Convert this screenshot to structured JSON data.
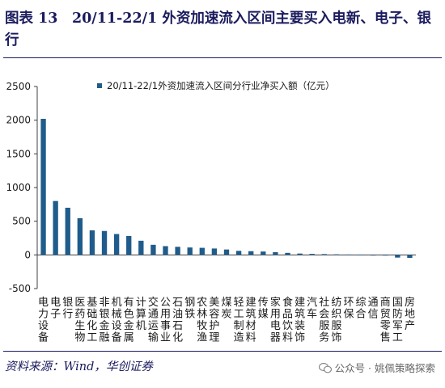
{
  "figure": {
    "title": "图表 13　20/11-22/1 外资加速流入区间主要买入电新、电子、银行",
    "source": "资料来源：Wind，华创证券",
    "watermark": "公众号 · 姚佩策略探索"
  },
  "colors": {
    "bar": "#1f5c8b",
    "title": "#1b1b5e",
    "axis": "#404040"
  },
  "chart_data": {
    "type": "bar",
    "legend": {
      "label": "20/11-22/1外资加速流入区间分行业净买入额（亿元）",
      "position": "top"
    },
    "categories": [
      "电力设备",
      "电子",
      "银行",
      "医药生物",
      "基础化工",
      "非银金融",
      "机械设备",
      "有色金属",
      "计算机",
      "交通运输",
      "公用事业",
      "石油石化",
      "钢铁",
      "农林牧渔",
      "美容护理",
      "煤炭",
      "轻工制造",
      "建筑材料",
      "传媒",
      "家用电器",
      "食品饮料",
      "建筑装饰",
      "汽车",
      "社会服务",
      "纺织服饰",
      "环保",
      "综合",
      "通信",
      "商贸零售",
      "国防军工",
      "房地产"
    ],
    "values": [
      2020,
      800,
      700,
      545,
      365,
      355,
      310,
      280,
      210,
      150,
      130,
      120,
      110,
      105,
      95,
      80,
      60,
      55,
      50,
      40,
      30,
      20,
      15,
      12,
      8,
      5,
      3,
      -5,
      -10,
      -40,
      -45
    ],
    "ylim": [
      -500,
      2500
    ],
    "yticks": [
      -500,
      0,
      500,
      1000,
      1500,
      2000,
      2500
    ],
    "grid": false
  }
}
